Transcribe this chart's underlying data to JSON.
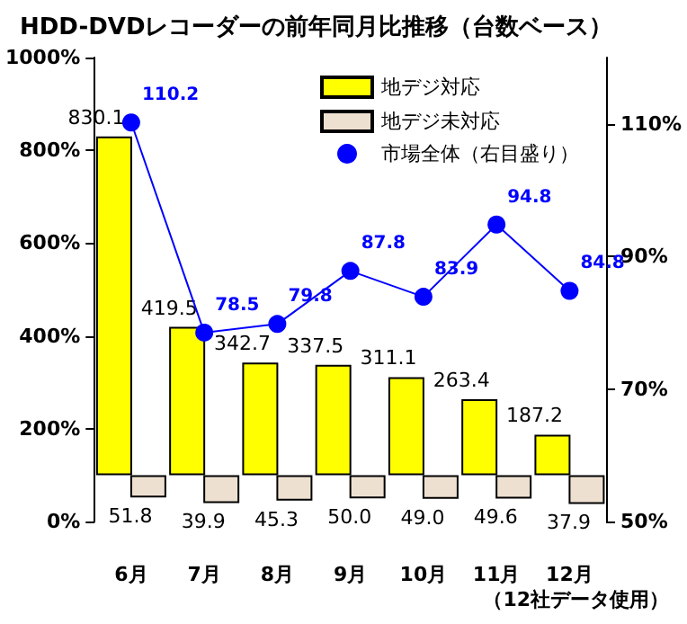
{
  "chart_data": {
    "type": "bar",
    "title": "HDD-DVDレコーダーの前年同月比推移（台数ベース）",
    "categories": [
      "6月",
      "7月",
      "8月",
      "9月",
      "10月",
      "11月",
      "12月"
    ],
    "series": [
      {
        "name": "地デジ対応",
        "color": "#ffff00",
        "base": [
          100,
          100,
          100,
          100,
          100,
          100,
          100
        ],
        "values": [
          730.1,
          319.5,
          242.7,
          237.5,
          211.1,
          163.4,
          87.2
        ],
        "value_labels": [
          "830.1",
          "419.5",
          "342.7",
          "337.5",
          "311.1",
          "263.4",
          "187.2"
        ]
      },
      {
        "name": "地デジ未対応",
        "color": "#eee0d0",
        "base": [
          100,
          100,
          100,
          100,
          100,
          100,
          100
        ],
        "values": [
          -48.2,
          -60.1,
          -54.7,
          -50.0,
          -51.0,
          -50.4,
          -62.1
        ],
        "value_labels": [
          "51.8",
          "39.9",
          "45.3",
          "50.0",
          "49.0",
          "49.6",
          "37.9"
        ]
      },
      {
        "name": "市場全体（右目盛り）",
        "type": "line",
        "axis": "y2",
        "color": "#0000ff",
        "marker": "circle",
        "values": [
          110.2,
          78.5,
          79.8,
          87.8,
          83.9,
          94.8,
          84.8
        ],
        "data_labels": true
      }
    ],
    "ylim": [
      0,
      1000
    ],
    "yticks": [
      {
        "value": 0,
        "label": "0%"
      },
      {
        "value": 200,
        "label": "200%"
      },
      {
        "value": 400,
        "label": "400%"
      },
      {
        "value": 600,
        "label": "600%"
      },
      {
        "value": 800,
        "label": "800%"
      },
      {
        "value": 1000,
        "label": "1000%"
      }
    ],
    "y2lim": [
      50,
      120
    ],
    "y2ticks": [
      {
        "value": 50,
        "label": "50%"
      },
      {
        "value": 70,
        "label": "70%"
      },
      {
        "value": 90,
        "label": "90%"
      },
      {
        "value": 110,
        "label": "110%"
      }
    ],
    "grid": false,
    "legend": "top right",
    "annotations": [
      "（12社データ使用）"
    ]
  }
}
